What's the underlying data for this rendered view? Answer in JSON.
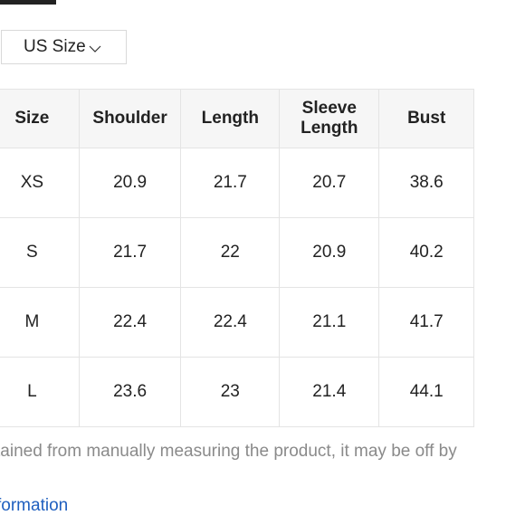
{
  "unit_selector": {
    "selected": "US Size",
    "icon": "chevron-down-icon"
  },
  "table": {
    "headers": [
      "Size",
      "Shoulder",
      "Length",
      "Sleeve Length",
      "Bust"
    ],
    "rows": [
      [
        "XS",
        "20.9",
        "21.7",
        "20.7",
        "38.6"
      ],
      [
        "S",
        "21.7",
        "22",
        "20.9",
        "40.2"
      ],
      [
        "M",
        "22.4",
        "22.4",
        "21.1",
        "41.7"
      ],
      [
        "L",
        "23.6",
        "23",
        "21.4",
        "44.1"
      ]
    ]
  },
  "note_text": "tained from manually measuring the product, it may be off by",
  "link_text": "formation"
}
